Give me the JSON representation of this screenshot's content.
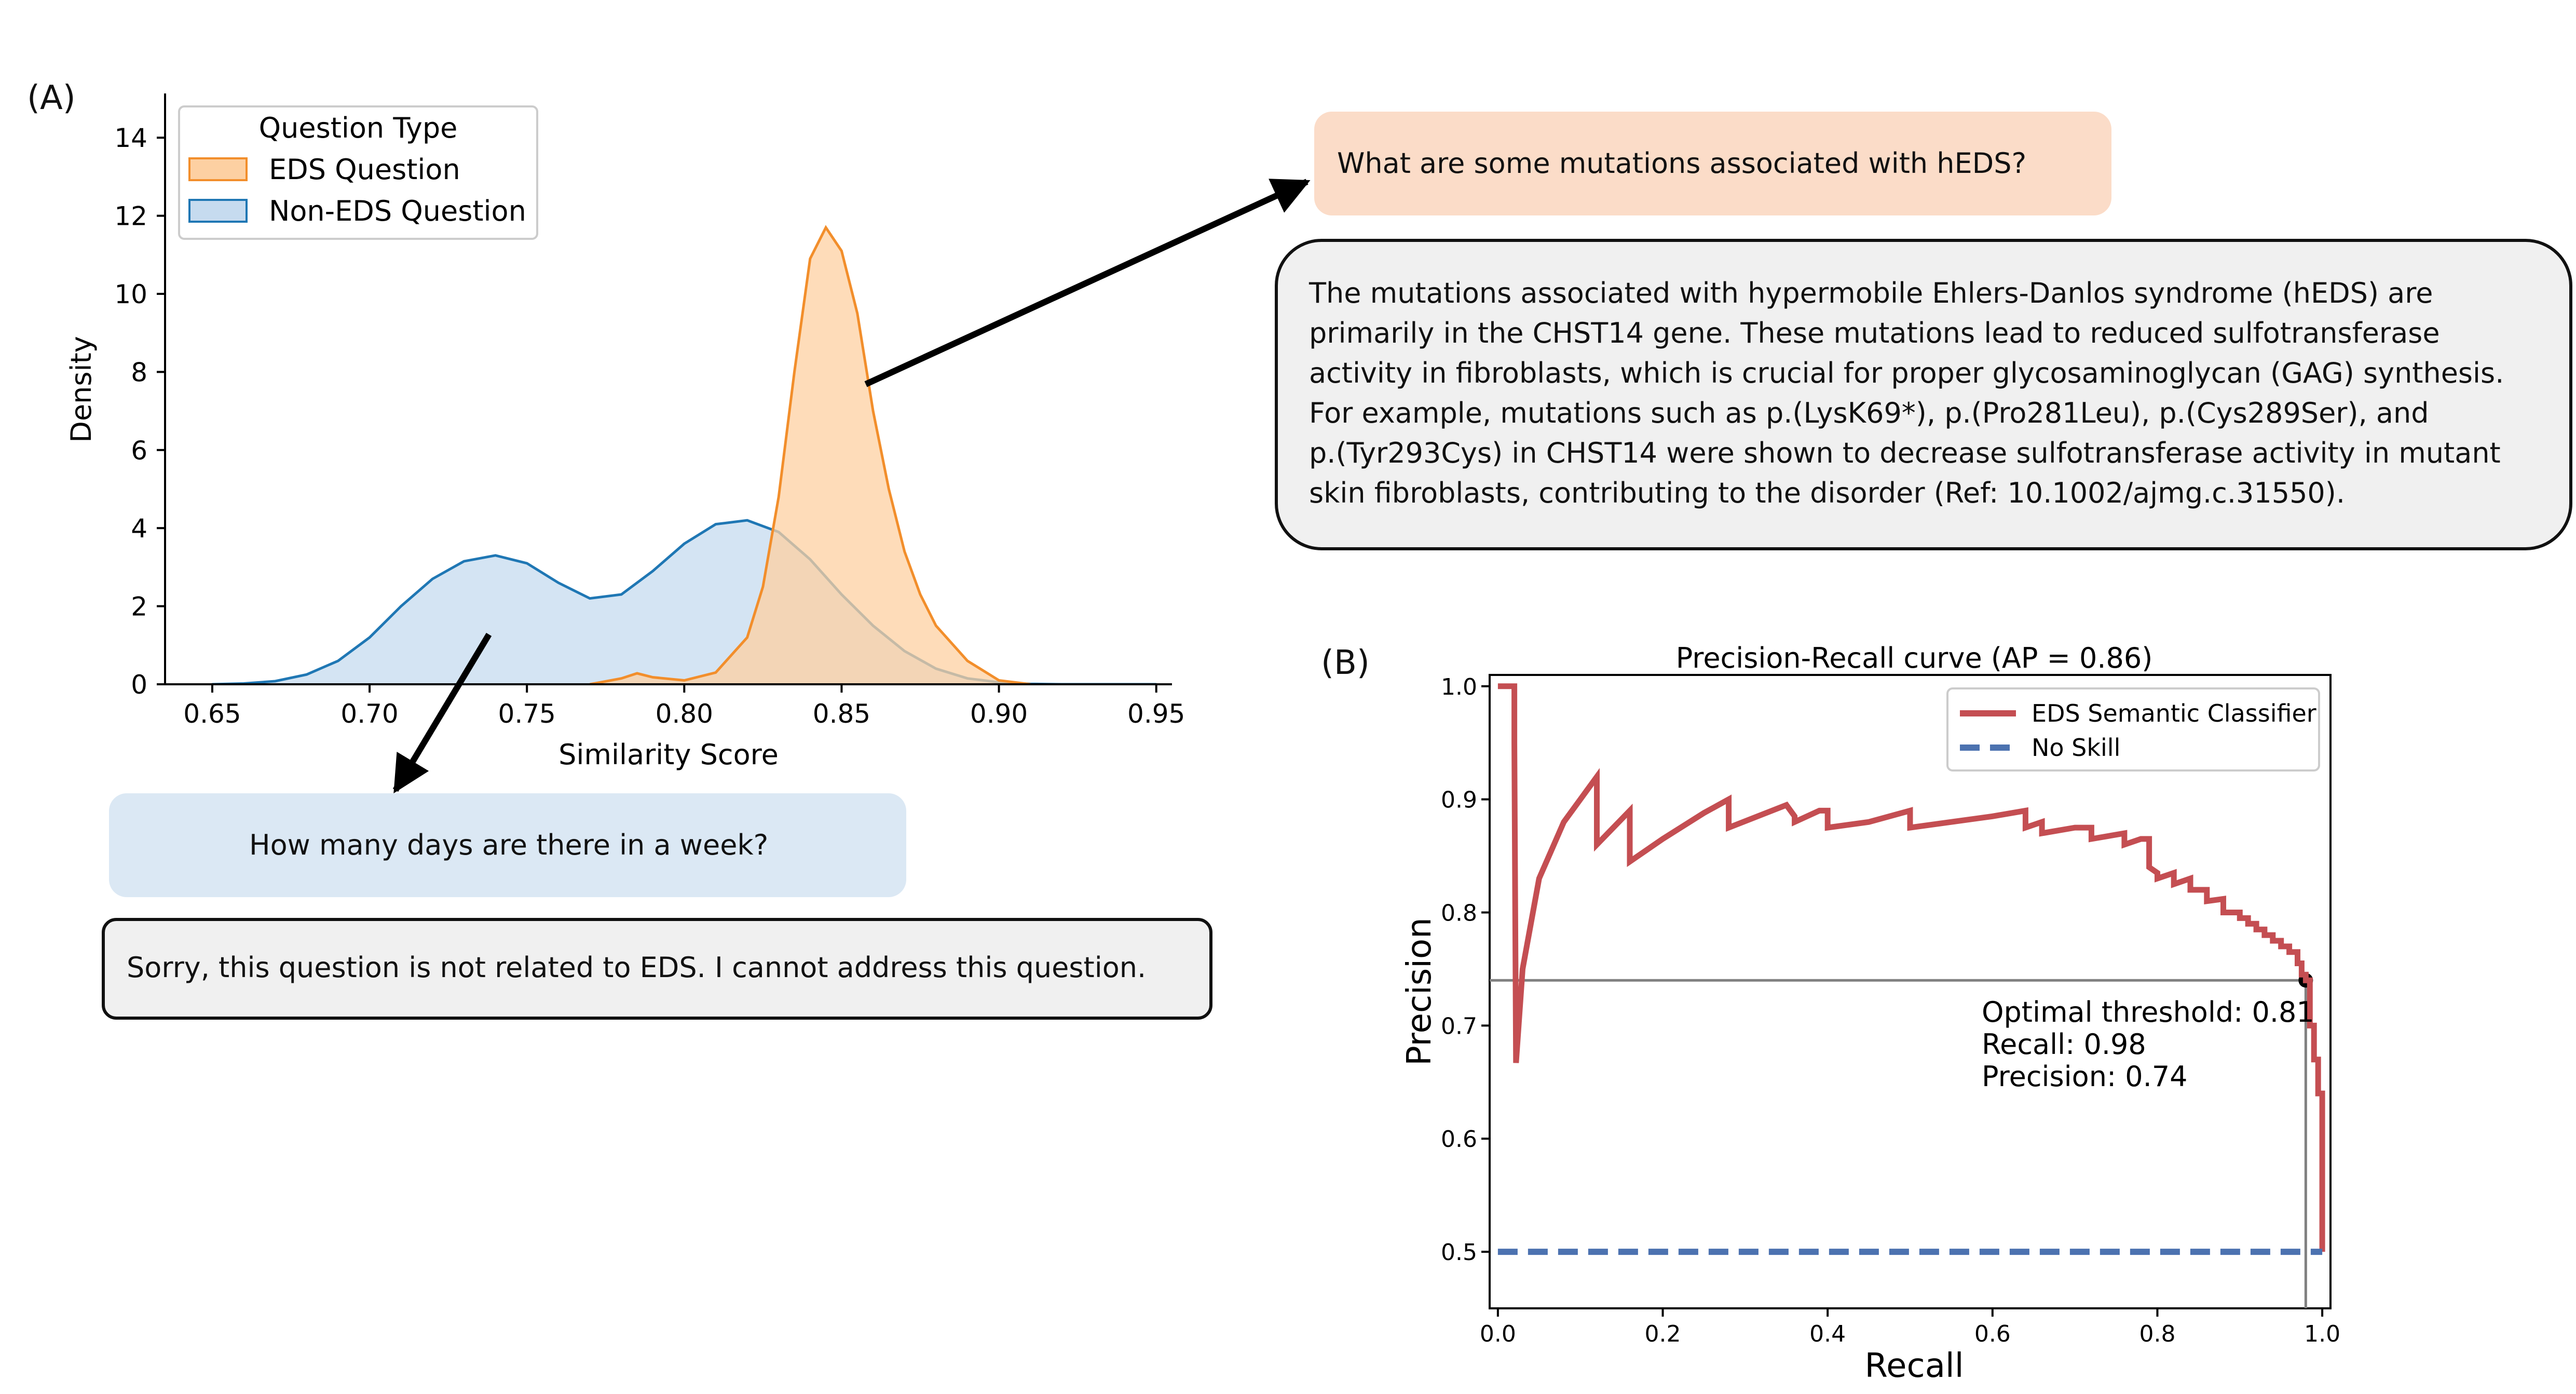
{
  "panel_a": {
    "label": "(A)",
    "legend": {
      "title": "Question Type",
      "items": [
        "EDS Question",
        "Non-EDS Question"
      ]
    },
    "eds_question": "What are some mutations associated with hEDS?",
    "eds_answer_lines": [
      "The mutations associated with hypermobile Ehlers-Danlos syndrome (hEDS) are",
      "primarily in the CHST14 gene. These mutations lead to reduced sulfotransferase",
      "activity in fibroblasts, which is crucial for proper glycosaminoglycan (GAG) synthesis.",
      "For example, mutations such as p.(LysK69*), p.(Pro281Leu), p.(Cys289Ser), and",
      "p.(Tyr293Cys) in CHST14 were shown to decrease sulfotransferase activity in mutant",
      "skin fibroblasts, contributing to the disorder (Ref: 10.1002/ajmg.c.31550)."
    ],
    "non_eds_question": "How many days are there in a week?",
    "non_eds_answer": "Sorry, this question is not related to EDS. I cannot address this question."
  },
  "panel_b": {
    "label": "(B)"
  },
  "colors": {
    "eds_fill": "#fdd0a2",
    "eds_line": "#f28e2b",
    "noneds_fill": "#c6dbef",
    "noneds_line": "#1f77b4",
    "pr_line": "#c44e52",
    "noskill_line": "#4c72b0",
    "crosshair": "#808080"
  },
  "chart_data": [
    {
      "type": "area",
      "title": "",
      "xlabel": "Similarity Score",
      "ylabel": "Density",
      "xlim": [
        0.635,
        0.955
      ],
      "ylim": [
        0,
        15
      ],
      "xticks": [
        "0.65",
        "0.70",
        "0.75",
        "0.80",
        "0.85",
        "0.90",
        "0.95"
      ],
      "yticks": [
        "0",
        "2",
        "4",
        "6",
        "8",
        "10",
        "12",
        "14"
      ],
      "legend_position": "top-left",
      "grid": false,
      "series": [
        {
          "name": "Non-EDS Question",
          "x": [
            0.65,
            0.66,
            0.67,
            0.68,
            0.69,
            0.7,
            0.71,
            0.72,
            0.73,
            0.74,
            0.75,
            0.76,
            0.77,
            0.78,
            0.79,
            0.8,
            0.81,
            0.82,
            0.83,
            0.84,
            0.85,
            0.86,
            0.87,
            0.88,
            0.89,
            0.9,
            0.91,
            0.92,
            0.93,
            0.94,
            0.95
          ],
          "y": [
            0,
            0.02,
            0.08,
            0.25,
            0.6,
            1.2,
            2.0,
            2.7,
            3.15,
            3.3,
            3.1,
            2.6,
            2.2,
            2.3,
            2.9,
            3.6,
            4.1,
            4.2,
            3.9,
            3.2,
            2.3,
            1.5,
            0.85,
            0.4,
            0.15,
            0.05,
            0.01,
            0,
            0,
            0,
            0
          ]
        },
        {
          "name": "EDS Question",
          "x": [
            0.77,
            0.78,
            0.785,
            0.79,
            0.8,
            0.81,
            0.82,
            0.825,
            0.83,
            0.835,
            0.84,
            0.845,
            0.85,
            0.855,
            0.86,
            0.865,
            0.87,
            0.875,
            0.88,
            0.89,
            0.9,
            0.91
          ],
          "y": [
            0,
            0.15,
            0.28,
            0.18,
            0.1,
            0.3,
            1.2,
            2.5,
            4.8,
            8.0,
            10.9,
            11.7,
            11.1,
            9.5,
            7.0,
            5.0,
            3.4,
            2.3,
            1.5,
            0.6,
            0.1,
            0
          ]
        }
      ]
    },
    {
      "type": "line",
      "title": "Precision-Recall curve (AP = 0.86)",
      "xlabel": "Recall",
      "ylabel": "Precision",
      "xlim": [
        -0.01,
        1.01
      ],
      "ylim": [
        0.45,
        1.01
      ],
      "xticks": [
        "0.0",
        "0.2",
        "0.4",
        "0.6",
        "0.8",
        "1.0"
      ],
      "yticks": [
        "0.5",
        "0.6",
        "0.7",
        "0.8",
        "0.9",
        "1.0"
      ],
      "legend_position": "top-right",
      "grid": false,
      "series": [
        {
          "name": "EDS Semantic Classifier",
          "x": [
            0,
            0.02,
            0.02,
            0.022,
            0.03,
            0.05,
            0.08,
            0.11,
            0.12,
            0.12,
            0.16,
            0.16,
            0.2,
            0.25,
            0.28,
            0.28,
            0.35,
            0.36,
            0.36,
            0.39,
            0.4,
            0.4,
            0.45,
            0.5,
            0.5,
            0.55,
            0.6,
            0.64,
            0.64,
            0.66,
            0.66,
            0.7,
            0.72,
            0.72,
            0.76,
            0.76,
            0.78,
            0.79,
            0.79,
            0.8,
            0.8,
            0.82,
            0.82,
            0.84,
            0.84,
            0.86,
            0.86,
            0.88,
            0.88,
            0.9,
            0.9,
            0.91,
            0.91,
            0.92,
            0.92,
            0.93,
            0.93,
            0.94,
            0.94,
            0.95,
            0.95,
            0.96,
            0.96,
            0.97,
            0.97,
            0.975,
            0.975,
            0.98,
            0.98,
            0.985,
            0.985,
            0.99,
            0.99,
            0.995,
            0.995,
            1.0,
            1.0
          ],
          "y": [
            1.0,
            1.0,
            0.95,
            0.667,
            0.75,
            0.83,
            0.88,
            0.91,
            0.92,
            0.86,
            0.89,
            0.845,
            0.865,
            0.888,
            0.9,
            0.875,
            0.895,
            0.885,
            0.88,
            0.89,
            0.89,
            0.875,
            0.88,
            0.89,
            0.875,
            0.88,
            0.885,
            0.89,
            0.875,
            0.88,
            0.87,
            0.875,
            0.875,
            0.865,
            0.87,
            0.86,
            0.865,
            0.865,
            0.84,
            0.835,
            0.83,
            0.835,
            0.825,
            0.83,
            0.82,
            0.82,
            0.81,
            0.812,
            0.8,
            0.8,
            0.795,
            0.795,
            0.79,
            0.79,
            0.785,
            0.785,
            0.78,
            0.78,
            0.775,
            0.775,
            0.77,
            0.77,
            0.765,
            0.765,
            0.755,
            0.755,
            0.745,
            0.745,
            0.74,
            0.74,
            0.7,
            0.7,
            0.67,
            0.67,
            0.64,
            0.64,
            0.5
          ]
        },
        {
          "name": "No Skill",
          "x": [
            0,
            1
          ],
          "y": [
            0.5,
            0.5
          ]
        }
      ],
      "optimal_point": {
        "recall": 0.98,
        "precision": 0.74
      },
      "annotation_lines": [
        "Optimal threshold: 0.81",
        "Recall: 0.98",
        "Precision: 0.74"
      ]
    }
  ]
}
